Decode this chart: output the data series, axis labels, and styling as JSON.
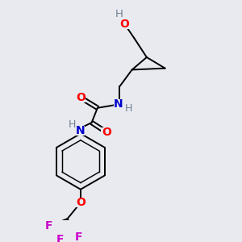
{
  "bg_color": "#e8eaf0",
  "atom_colors": {
    "C": "#000000",
    "H": "#708090",
    "N": "#0000cd",
    "O": "#ff0000",
    "F": "#cc00cc"
  },
  "bond_color": "#000000",
  "bond_width": 1.4
}
